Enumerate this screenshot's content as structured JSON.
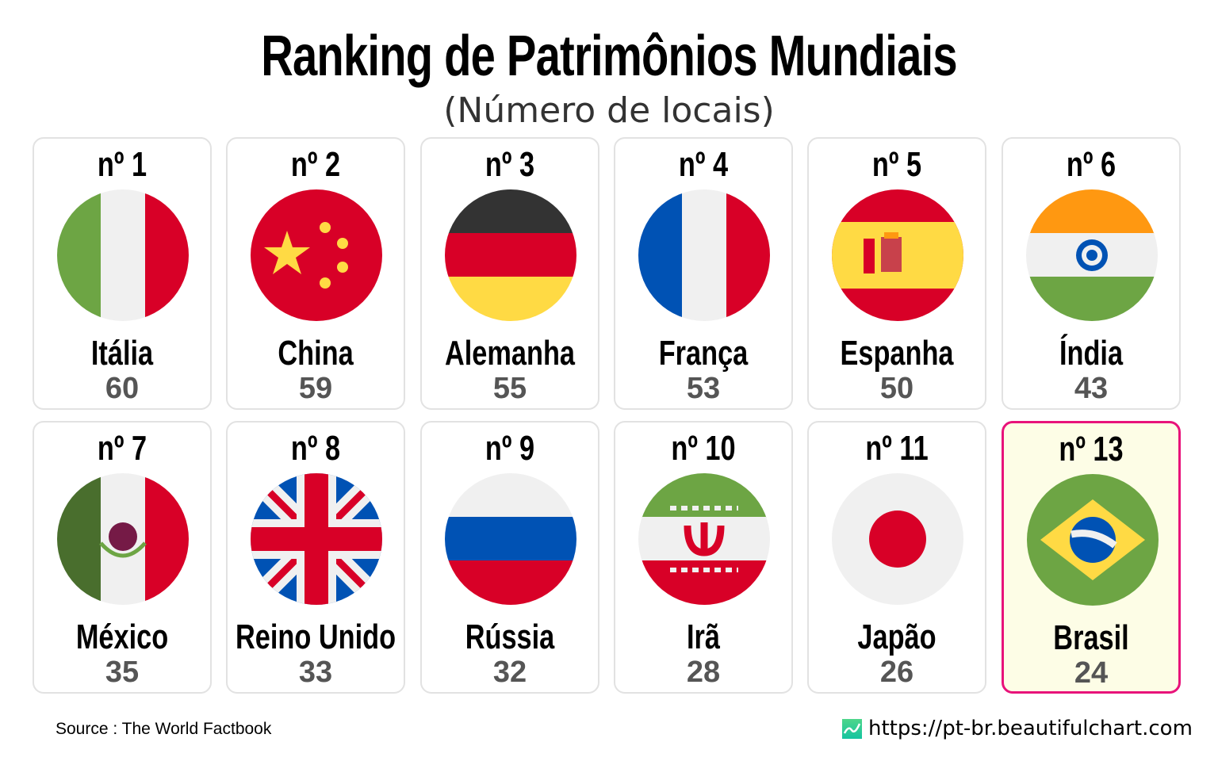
{
  "title": "Ranking de Patrimônios Mundiais",
  "subtitle": "(Número de locais)",
  "source": "Source : The World Factbook",
  "url": "https://pt-br.beautifulchart.com",
  "highlight_color": "#e8137a",
  "chart_data": {
    "type": "table",
    "title": "Ranking de Patrimônios Mundiais",
    "subtitle": "(Número de locais)",
    "items": [
      {
        "rank": "nº 1",
        "country": "Itália",
        "value": 60,
        "flag": "italy"
      },
      {
        "rank": "nº 2",
        "country": "China",
        "value": 59,
        "flag": "china"
      },
      {
        "rank": "nº 3",
        "country": "Alemanha",
        "value": 55,
        "flag": "germany"
      },
      {
        "rank": "nº 4",
        "country": "França",
        "value": 53,
        "flag": "france"
      },
      {
        "rank": "nº 5",
        "country": "Espanha",
        "value": 50,
        "flag": "spain"
      },
      {
        "rank": "nº 6",
        "country": "Índia",
        "value": 43,
        "flag": "india"
      },
      {
        "rank": "nº 7",
        "country": "México",
        "value": 35,
        "flag": "mexico"
      },
      {
        "rank": "nº 8",
        "country": "Reino Unido",
        "value": 33,
        "flag": "uk"
      },
      {
        "rank": "nº 9",
        "country": "Rússia",
        "value": 32,
        "flag": "russia"
      },
      {
        "rank": "nº 10",
        "country": "Irã",
        "value": 28,
        "flag": "iran"
      },
      {
        "rank": "nº 11",
        "country": "Japão",
        "value": 26,
        "flag": "japan"
      },
      {
        "rank": "nº 13",
        "country": "Brasil",
        "value": 24,
        "flag": "brazil",
        "highlighted": true
      }
    ]
  }
}
